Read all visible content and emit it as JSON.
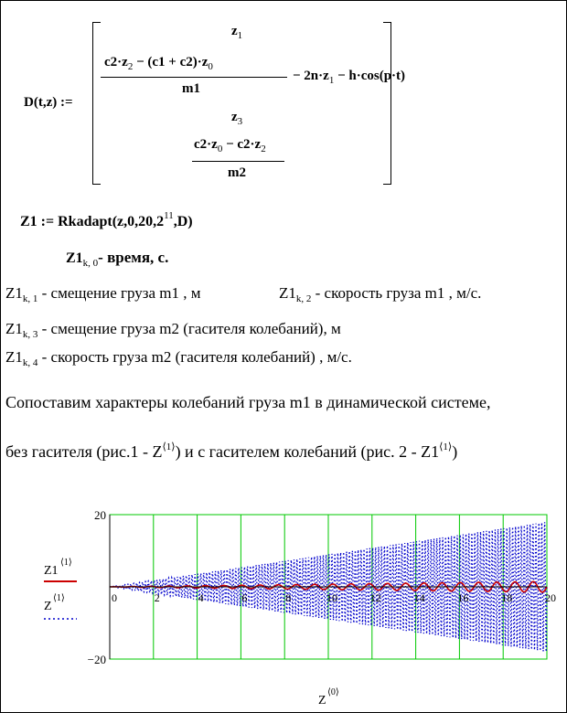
{
  "def": {
    "lhs": "D(t,z) :=",
    "r1": "z",
    "r1sub": "1",
    "r2_num_a": "c2·z",
    "r2_num_a_sub": "2",
    "r2_num_b": " − (c1 + c2)·z",
    "r2_num_b_sub": "0",
    "r2_den": "m1",
    "r2_tail_a": "− 2n·z",
    "r2_tail_a_sub": "1",
    "r2_tail_b": " − h·cos(p·t)",
    "r3": "z",
    "r3sub": "3",
    "r4_num_a": "c2·z",
    "r4_num_a_sub": "0",
    "r4_num_b": " − c2·z",
    "r4_num_b_sub": "2",
    "r4_den": "m2"
  },
  "call": {
    "pre": "Z1 := Rkadapt(z,0,20,2",
    "exp": "11",
    "post": ",D)"
  },
  "legend_lines": [
    {
      "var": "Z1",
      "sub": "k, 0",
      "text": "- время, с."
    },
    {
      "var": "Z1",
      "sub": "k, 1",
      "text": " - смещение груза m1 , м"
    },
    {
      "var": "Z1",
      "sub": "k, 2",
      "text": " - скорость  груза m1 , м/с."
    },
    {
      "var": "Z1",
      "sub": "k, 3",
      "text": " - смещение груза m2 (гасителя колебаний), м"
    },
    {
      "var": "Z1",
      "sub": "k, 4",
      "text": " - скорость  груза m2 (гасителя колебаний) , м/с."
    }
  ],
  "para1": "Сопоставим характеры колебаний груза m1 в динамической системе,",
  "para2_a": "без гасителя (рис.1 -  Z",
  "para2_sup1": "⟨1⟩",
  "para2_b": ") и с гасителем колебаний (рис. 2 - Z1",
  "para2_sup2": "⟨1⟩",
  "para2_c": ")",
  "chart_data": {
    "type": "line",
    "x_range": [
      0,
      20
    ],
    "ylim": [
      -20,
      20
    ],
    "xticks": [
      0,
      2,
      4,
      6,
      8,
      10,
      12,
      14,
      16,
      18,
      20
    ],
    "ytick_labels": [
      "20",
      "−20"
    ],
    "xlabel": "Z",
    "xlabel_sup": "⟨0⟩",
    "grid": true,
    "grid_color": "#00c800",
    "series": [
      {
        "name": "Z1",
        "name_sup": "⟨1⟩",
        "color": "#cc0000",
        "style": "solid",
        "amplitude_start": 0,
        "amplitude_end": 1.5,
        "frequency_hz": 1.2
      },
      {
        "name": "Z",
        "name_sup": "⟨1⟩",
        "color": "#0000cc",
        "style": "dotted",
        "amplitude_start": 0,
        "amplitude_end": 18,
        "frequency_hz": 7.5
      }
    ]
  }
}
